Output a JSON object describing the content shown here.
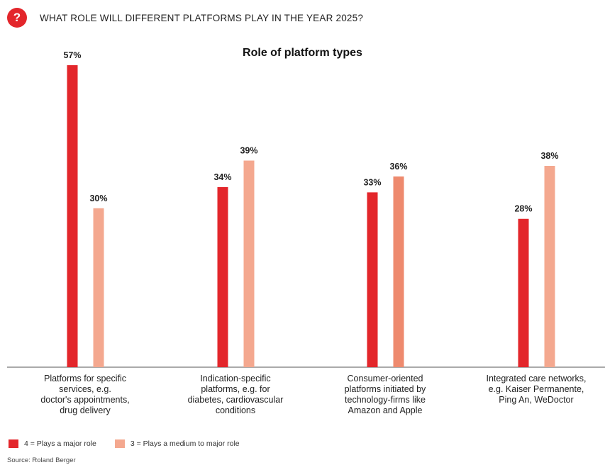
{
  "header": {
    "badge": "?",
    "title": "WHAT ROLE WILL DIFFERENT PLATFORMS PLAY IN THE YEAR 2025?"
  },
  "chart_data": {
    "type": "bar",
    "title": "Role of platform types",
    "categories": [
      "Platforms for specific services, e.g. doctor's appointments, drug delivery",
      "Indication-specific platforms, e.g. for diabetes, cardiovascular conditions",
      "Consumer-oriented platforms initiated by technology-firms like Amazon and Apple",
      "Integrated care networks, e.g. Kaiser Permanente, Ping An, WeDoctor"
    ],
    "category_lines": [
      [
        "Platforms for specific",
        "services, e.g.",
        "doctor's appointments,",
        "drug delivery"
      ],
      [
        "Indication-specific",
        "platforms, e.g. for",
        "diabetes, cardiovascular",
        "conditions"
      ],
      [
        "Consumer-oriented",
        "platforms initiated by",
        "technology-firms like",
        "Amazon and Apple"
      ],
      [
        "Integrated care networks,",
        "e.g. Kaiser Permanente,",
        "Ping An, WeDoctor"
      ]
    ],
    "series": [
      {
        "name": "4 = Plays a major role",
        "values": [
          57,
          34,
          33,
          28
        ],
        "color": "#e3262b"
      },
      {
        "name": "3 = Plays a medium to major role",
        "values": [
          30,
          39,
          36,
          38
        ],
        "colors": [
          "#f4a88f",
          "#f4a88f",
          "#ee8a6e",
          "#f4a88f"
        ],
        "color": "#f4a88f"
      }
    ],
    "value_suffix": "%",
    "ylim": [
      0,
      57
    ],
    "grid": false,
    "legend": "bottom-left"
  },
  "source": "Source: Roland Berger"
}
